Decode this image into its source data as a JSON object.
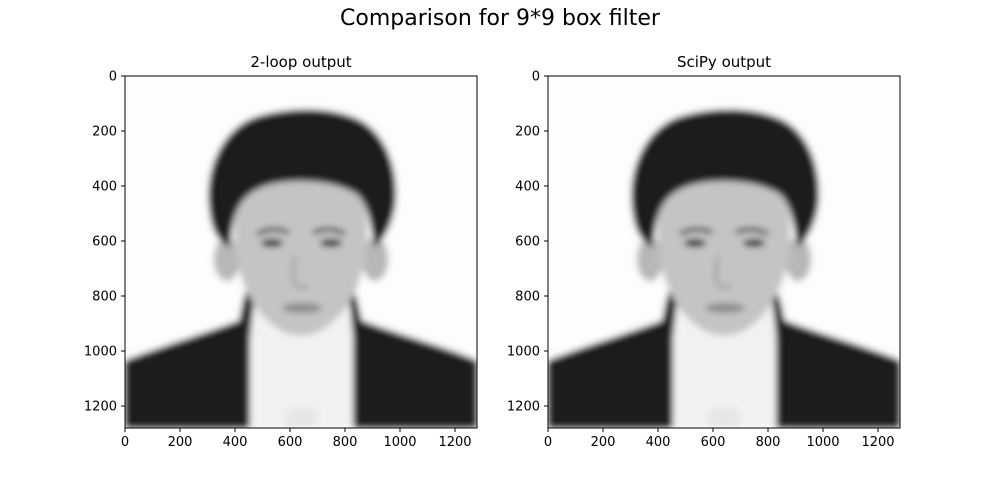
{
  "figure": {
    "suptitle": "Comparison for 9*9 box filter"
  },
  "chart_data": [
    {
      "type": "image",
      "title": "2-loop output",
      "xlim": [
        0,
        1280
      ],
      "ylim": [
        1280,
        0
      ],
      "xticks": [
        0,
        200,
        400,
        600,
        800,
        1000,
        1200
      ],
      "yticks": [
        0,
        200,
        400,
        600,
        800,
        1000,
        1200
      ],
      "content": "grayscale portrait photo (blurred)"
    },
    {
      "type": "image",
      "title": "SciPy output",
      "xlim": [
        0,
        1280
      ],
      "ylim": [
        1280,
        0
      ],
      "xticks": [
        0,
        200,
        400,
        600,
        800,
        1000,
        1200
      ],
      "yticks": [
        0,
        200,
        400,
        600,
        800,
        1000,
        1200
      ],
      "content": "grayscale portrait photo (blurred)"
    }
  ]
}
